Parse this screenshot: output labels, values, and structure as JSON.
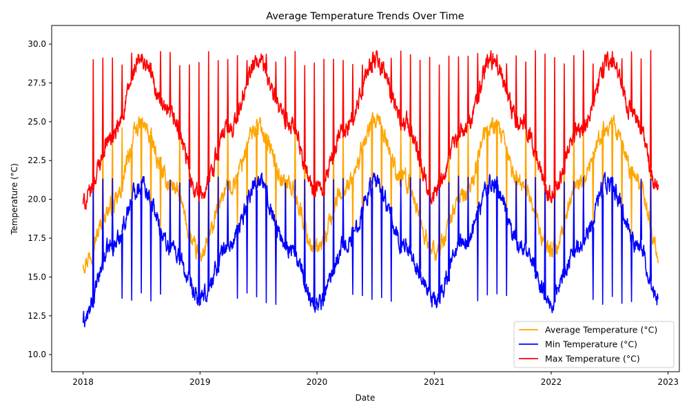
{
  "chart_data": {
    "type": "line",
    "title": "Average Temperature Trends Over Time",
    "xlabel": "Date",
    "ylabel": "Temperature (°C)",
    "xlim": [
      "2017-09-25",
      "2023-02-05"
    ],
    "ylim": [
      8.9,
      31.2
    ],
    "x_ticks": [
      "2018",
      "2019",
      "2020",
      "2021",
      "2022",
      "2023"
    ],
    "y_ticks": [
      "10.0",
      "12.5",
      "15.0",
      "17.5",
      "20.0",
      "22.5",
      "25.0",
      "27.5",
      "30.0"
    ],
    "grid": false,
    "legend_position": "lower right",
    "x_start": "2018-01-01",
    "x_end": "2022-12-01",
    "series": [
      {
        "name": "Average Temperature (°C)",
        "color": "#ffa500",
        "x": [
          "2018-01-01",
          "2018-04-01",
          "2018-07-01",
          "2018-10-01",
          "2019-01-01",
          "2019-04-01",
          "2019-07-01",
          "2019-10-01",
          "2020-01-01",
          "2020-04-01",
          "2020-07-01",
          "2020-10-01",
          "2021-01-01",
          "2021-04-01",
          "2021-07-01",
          "2021-10-01",
          "2022-01-01",
          "2022-04-01",
          "2022-07-01",
          "2022-10-01",
          "2022-12-01"
        ],
        "values": [
          16.0,
          19.5,
          24.8,
          21.0,
          16.4,
          20.8,
          24.7,
          21.0,
          16.7,
          20.9,
          24.9,
          21.2,
          16.6,
          20.2,
          24.8,
          21.0,
          16.6,
          20.9,
          24.9,
          21.2,
          16.7
        ]
      },
      {
        "name": "Min Temperature (°C)",
        "color": "#0000ff",
        "x": [
          "2018-01-01",
          "2018-04-01",
          "2018-07-01",
          "2018-10-01",
          "2019-01-01",
          "2019-04-01",
          "2019-07-01",
          "2019-10-01",
          "2020-01-01",
          "2020-04-01",
          "2020-07-01",
          "2020-10-01",
          "2021-01-01",
          "2021-04-01",
          "2021-07-01",
          "2021-10-01",
          "2022-01-01",
          "2022-04-01",
          "2022-07-01",
          "2022-10-01",
          "2022-12-01"
        ],
        "values": [
          12.2,
          17.0,
          21.0,
          17.0,
          13.5,
          17.0,
          21.2,
          17.0,
          13.3,
          17.2,
          21.0,
          17.0,
          13.5,
          17.2,
          21.0,
          17.0,
          13.5,
          17.3,
          21.0,
          17.0,
          13.5
        ]
      },
      {
        "name": "Max Temperature (°C)",
        "color": "#ff0000",
        "x": [
          "2018-01-01",
          "2018-04-01",
          "2018-07-01",
          "2018-10-01",
          "2019-01-01",
          "2019-04-01",
          "2019-07-01",
          "2019-10-01",
          "2020-01-01",
          "2020-04-01",
          "2020-07-01",
          "2020-10-01",
          "2021-01-01",
          "2021-04-01",
          "2021-07-01",
          "2021-10-01",
          "2022-01-01",
          "2022-04-01",
          "2022-07-01",
          "2022-10-01",
          "2022-12-01"
        ],
        "values": [
          19.8,
          24.0,
          28.9,
          25.3,
          20.4,
          24.5,
          28.8,
          25.0,
          20.5,
          24.6,
          28.9,
          25.0,
          20.4,
          24.5,
          28.9,
          25.0,
          20.4,
          24.6,
          28.8,
          25.0,
          20.4
        ]
      }
    ]
  }
}
